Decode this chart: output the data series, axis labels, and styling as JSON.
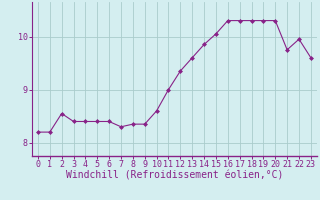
{
  "x": [
    0,
    1,
    2,
    3,
    4,
    5,
    6,
    7,
    8,
    9,
    10,
    11,
    12,
    13,
    14,
    15,
    16,
    17,
    18,
    19,
    20,
    21,
    22,
    23
  ],
  "y": [
    8.2,
    8.2,
    8.55,
    8.4,
    8.4,
    8.4,
    8.4,
    8.3,
    8.35,
    8.35,
    8.6,
    9.0,
    9.35,
    9.6,
    9.85,
    10.05,
    10.3,
    10.3,
    10.3,
    10.3,
    10.3,
    9.75,
    9.95,
    9.6
  ],
  "line_color": "#882288",
  "marker": "D",
  "marker_size": 2,
  "bg_color": "#d4eef0",
  "grid_color": "#aacccc",
  "axis_color": "#882288",
  "xlabel": "Windchill (Refroidissement éolien,°C)",
  "xlabel_fontsize": 7,
  "tick_fontsize": 6,
  "xlim": [
    -0.5,
    23.5
  ],
  "ylim": [
    7.75,
    10.65
  ],
  "yticks": [
    8,
    9,
    10
  ],
  "xticks": [
    0,
    1,
    2,
    3,
    4,
    5,
    6,
    7,
    8,
    9,
    10,
    11,
    12,
    13,
    14,
    15,
    16,
    17,
    18,
    19,
    20,
    21,
    22,
    23
  ]
}
